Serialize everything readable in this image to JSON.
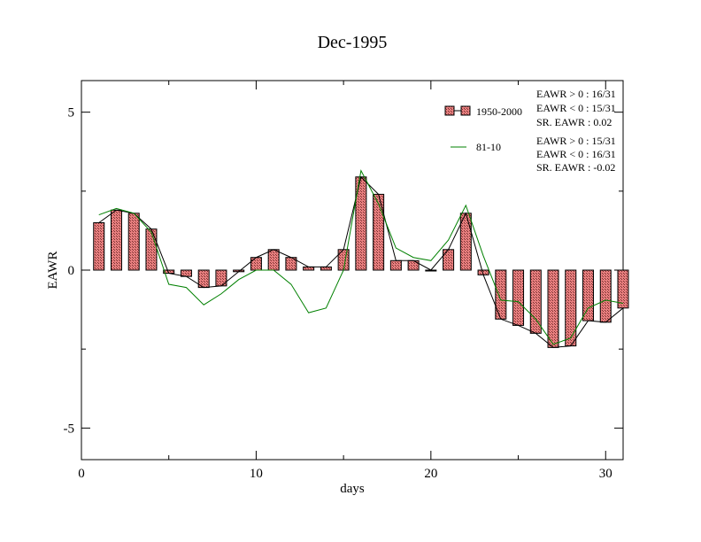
{
  "chart_data": {
    "type": "bar",
    "title": "Dec-1995",
    "xlabel": "days",
    "ylabel": "EAWR",
    "xlim": [
      0,
      31
    ],
    "ylim": [
      -6,
      6
    ],
    "x_ticks": [
      0,
      10,
      20,
      30
    ],
    "y_ticks": [
      -5,
      0,
      5
    ],
    "grid": false,
    "legend_placement": "top-right",
    "series": [
      {
        "name": "1950-2000",
        "kind": "bar",
        "fill_color": "#e87f7f",
        "line_color": "#000000",
        "x": [
          1,
          2,
          3,
          4,
          5,
          6,
          7,
          8,
          9,
          10,
          11,
          12,
          13,
          14,
          15,
          16,
          17,
          18,
          19,
          20,
          21,
          22,
          23,
          24,
          25,
          26,
          27,
          28,
          29,
          30,
          31
        ],
        "values": [
          1.5,
          1.9,
          1.8,
          1.3,
          -0.1,
          -0.2,
          -0.55,
          -0.5,
          -0.05,
          0.4,
          0.65,
          0.4,
          0.1,
          0.1,
          0.65,
          2.95,
          2.4,
          0.3,
          0.3,
          0.0,
          0.65,
          1.8,
          -0.15,
          -1.55,
          -1.75,
          -2.0,
          -2.45,
          -2.4,
          -1.6,
          -1.65,
          -1.2
        ]
      },
      {
        "name": "81-10",
        "kind": "line",
        "color": "#008000",
        "x": [
          1,
          2,
          3,
          4,
          5,
          6,
          7,
          8,
          9,
          10,
          11,
          12,
          13,
          14,
          15,
          16,
          17,
          18,
          19,
          20,
          21,
          22,
          23,
          24,
          25,
          26,
          27,
          28,
          29,
          30,
          31
        ],
        "values": [
          1.75,
          1.95,
          1.8,
          1.2,
          -0.45,
          -0.55,
          -1.1,
          -0.75,
          -0.3,
          0.0,
          0.0,
          -0.45,
          -1.35,
          -1.2,
          0.0,
          3.15,
          2.1,
          0.7,
          0.4,
          0.3,
          0.95,
          2.05,
          0.45,
          -0.95,
          -1.0,
          -1.55,
          -2.35,
          -2.15,
          -1.2,
          -0.95,
          -1.05
        ]
      }
    ],
    "annotations": [
      [
        "EAWR > 0 : 16/31",
        "EAWR < 0 : 15/31",
        "SR. EAWR :  0.02"
      ],
      [
        "EAWR > 0 : 15/31",
        "EAWR < 0 : 16/31",
        "SR. EAWR : -0.02"
      ]
    ]
  }
}
